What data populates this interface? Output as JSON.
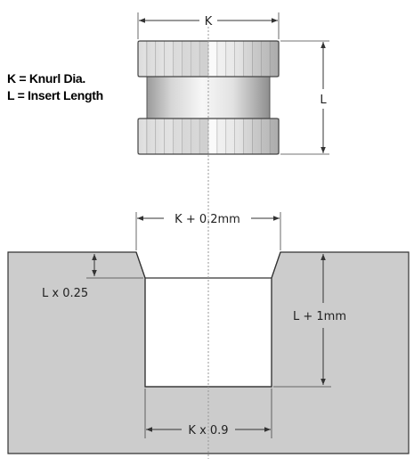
{
  "legend": {
    "k_def": "K = Knurl Dia.",
    "l_def": "L = Insert Length"
  },
  "dimensions": {
    "insert_dia": "K",
    "insert_length": "L",
    "top_opening": "K + 0.2mm",
    "chamfer_depth": "L x 0.25",
    "hole_depth": "L + 1mm",
    "hole_dia": "K x 0.9"
  },
  "colors": {
    "block_fill": "#cccccc",
    "line": "#333333",
    "knurl_light": "#f4f4f4",
    "knurl_dark": "#b8b8b8"
  }
}
